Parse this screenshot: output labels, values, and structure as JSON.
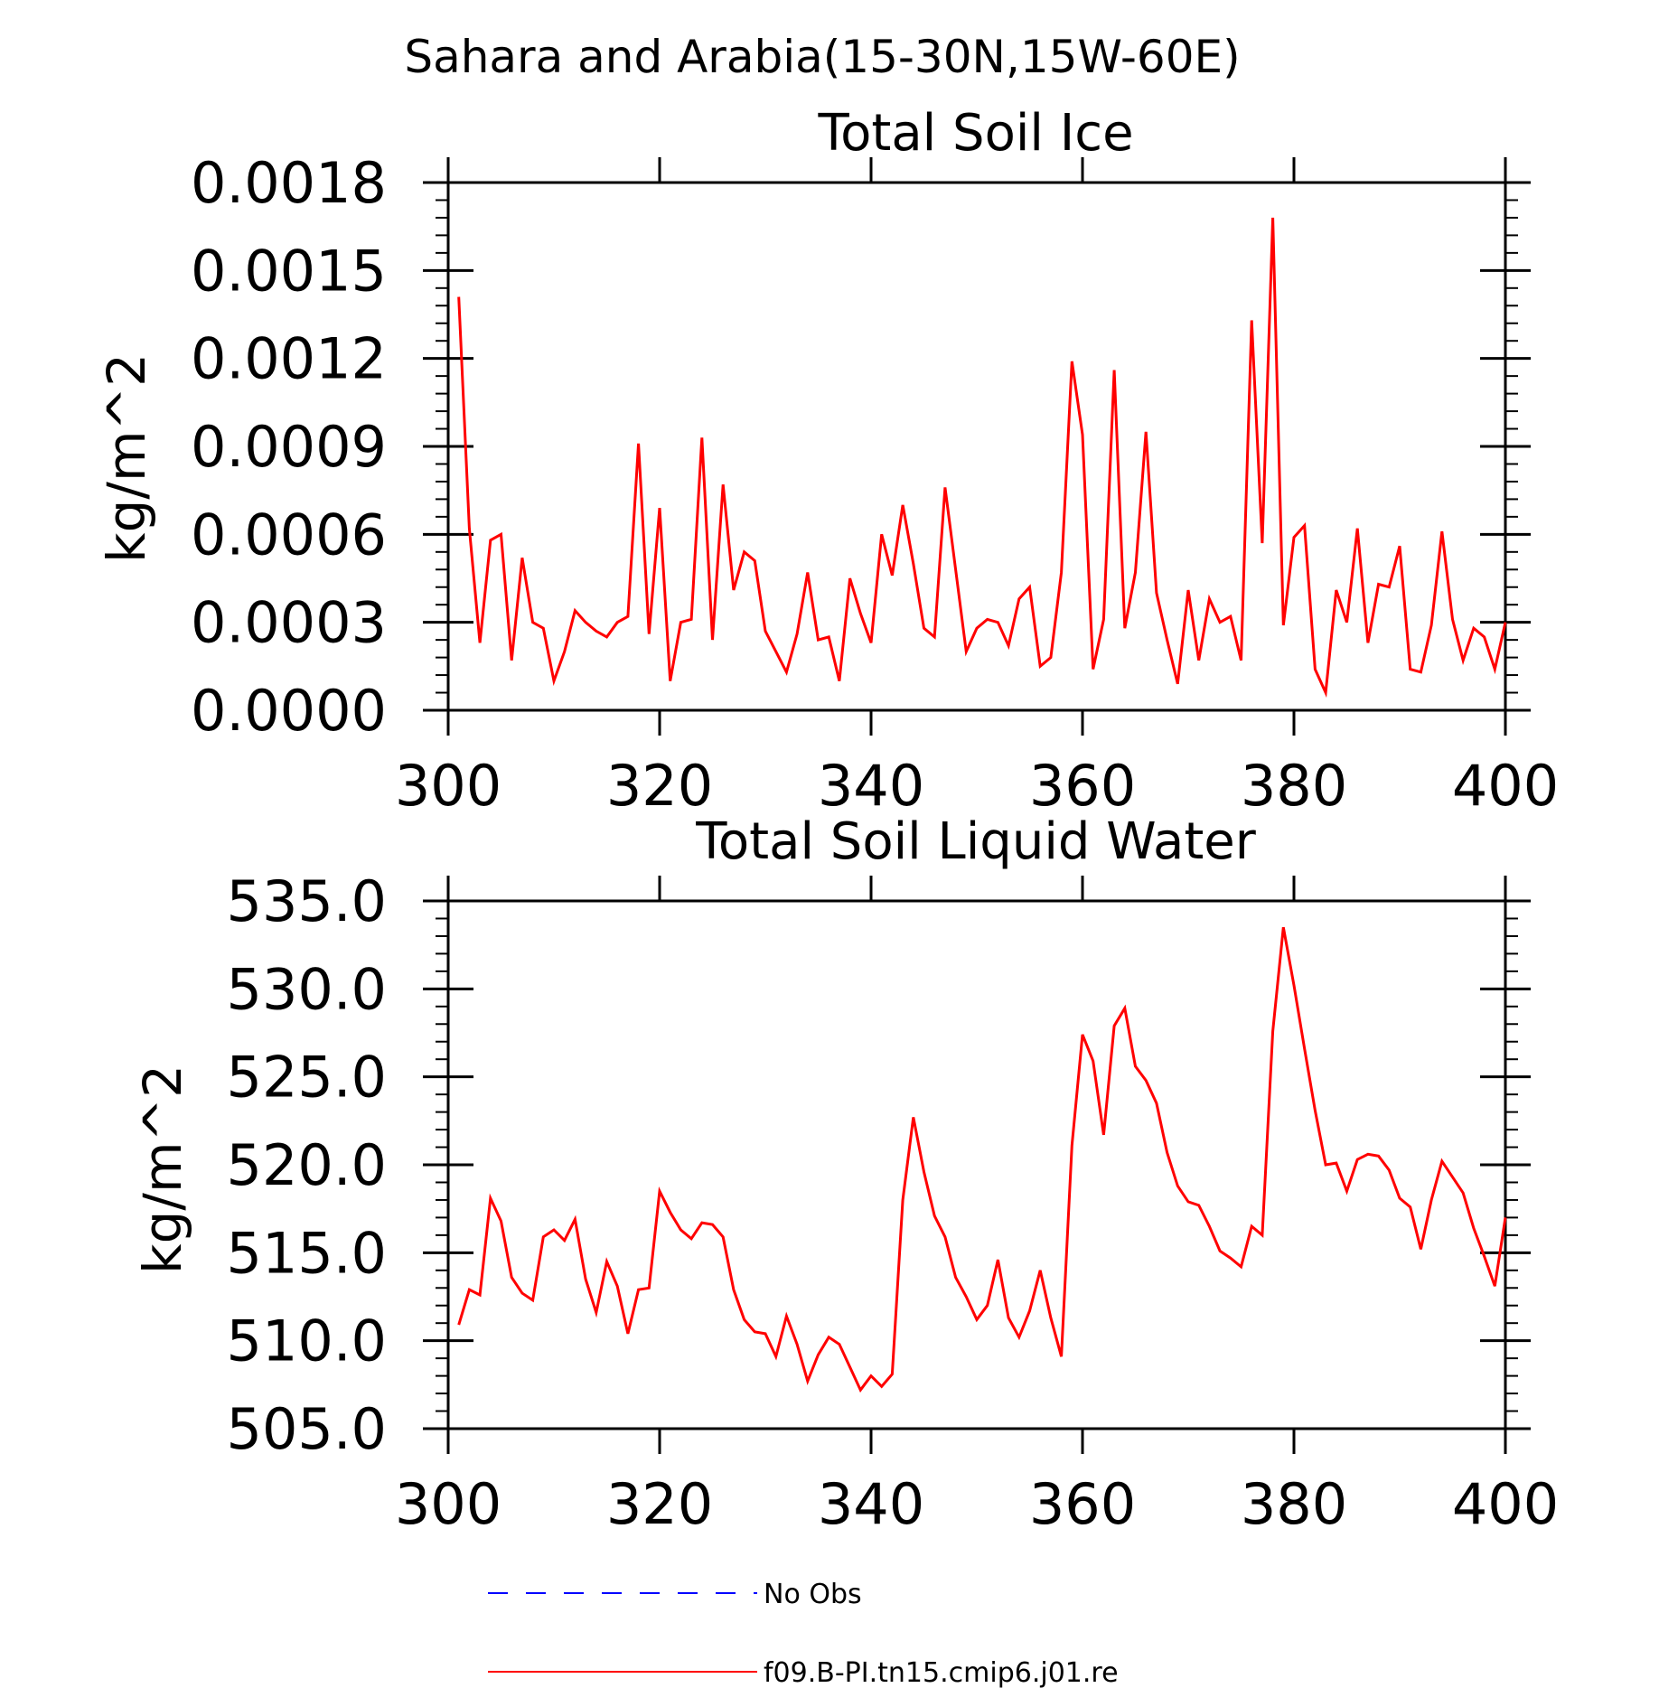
{
  "figure_title": "Sahara and Arabia(15-30N,15W-60E)",
  "colors": {
    "series": "#ff0000",
    "obs": "#0000ff",
    "axis": "#000000"
  },
  "legend": {
    "entries": [
      {
        "label": "No Obs",
        "color": "#0000ff",
        "style": "dashed"
      },
      {
        "label": "f09.B-PI.tn15.cmip6.j01.re",
        "color": "#ff0000",
        "style": "solid"
      }
    ]
  },
  "chart_data": [
    {
      "type": "line",
      "title": "Total Soil Ice",
      "ylabel": "kg/m^2",
      "xlim": [
        300,
        400
      ],
      "ylim": [
        0,
        0.0018
      ],
      "xticks": [
        300,
        320,
        340,
        360,
        380,
        400
      ],
      "xtick_labels": [
        "300",
        "320",
        "340",
        "360",
        "380",
        "400"
      ],
      "yticks": [
        0,
        0.0003,
        0.0006,
        0.0009,
        0.0012,
        0.0015,
        0.0018
      ],
      "ytick_labels": [
        "0.0000",
        "0.0003",
        "0.0006",
        "0.0009",
        "0.0012",
        "0.0015",
        "0.0018"
      ],
      "x_start": 301,
      "x_step": 1,
      "series": [
        {
          "name": "f09.B-PI.tn15.cmip6.j01.re",
          "color": "#ff0000",
          "values": [
            0.00141,
            0.00062,
            0.00023,
            0.00058,
            0.0006,
            0.00017,
            0.00052,
            0.0003,
            0.00028,
            0.0001,
            0.0002,
            0.00034,
            0.0003,
            0.00027,
            0.00025,
            0.0003,
            0.00032,
            0.00091,
            0.00026,
            0.00069,
            0.0001,
            0.0003,
            0.00031,
            0.00093,
            0.00024,
            0.00077,
            0.00041,
            0.00054,
            0.00051,
            0.00027,
            0.0002,
            0.00013,
            0.00026,
            0.00047,
            0.00024,
            0.00025,
            0.0001,
            0.00045,
            0.00033,
            0.00023,
            0.0006,
            0.00046,
            0.0007,
            0.0005,
            0.00028,
            0.00025,
            0.00076,
            0.00048,
            0.0002,
            0.00028,
            0.00031,
            0.0003,
            0.00022,
            0.00038,
            0.00042,
            0.00015,
            0.00018,
            0.00047,
            0.00119,
            0.00094,
            0.00014,
            0.00031,
            0.00116,
            0.00028,
            0.00047,
            0.00095,
            0.0004,
            0.00024,
            9e-05,
            0.00041,
            0.00017,
            0.00038,
            0.0003,
            0.00032,
            0.00017,
            0.00133,
            0.00057,
            0.00168,
            0.00029,
            0.00059,
            0.00063,
            0.00014,
            6e-05,
            0.00041,
            0.0003,
            0.00062,
            0.00023,
            0.00043,
            0.00042,
            0.00056,
            0.00014,
            0.00013,
            0.00029,
            0.00061,
            0.00031,
            0.00017,
            0.00028,
            0.00025,
            0.00014,
            0.0003
          ]
        }
      ]
    },
    {
      "type": "line",
      "title": "Total Soil Liquid Water",
      "ylabel": "kg/m^2",
      "xlim": [
        300,
        400
      ],
      "ylim": [
        505,
        535
      ],
      "xticks": [
        300,
        320,
        340,
        360,
        380,
        400
      ],
      "xtick_labels": [
        "300",
        "320",
        "340",
        "360",
        "380",
        "400"
      ],
      "yticks": [
        505,
        510,
        515,
        520,
        525,
        530,
        535
      ],
      "ytick_labels": [
        "505.0",
        "510.0",
        "515.0",
        "520.0",
        "525.0",
        "530.0",
        "535.0"
      ],
      "x_start": 301,
      "x_step": 1,
      "series": [
        {
          "name": "f09.B-PI.tn15.cmip6.j01.re",
          "color": "#ff0000",
          "values": [
            510.9,
            512.9,
            512.6,
            518.1,
            516.8,
            513.6,
            512.7,
            512.3,
            515.9,
            516.3,
            515.7,
            516.9,
            513.5,
            511.6,
            514.5,
            513.1,
            510.4,
            512.9,
            513.0,
            518.5,
            517.3,
            516.3,
            515.8,
            516.7,
            516.6,
            515.9,
            512.9,
            511.2,
            510.5,
            510.4,
            509.1,
            511.4,
            509.8,
            507.7,
            509.2,
            510.2,
            509.8,
            508.5,
            507.2,
            508.0,
            507.4,
            508.1,
            518.0,
            522.7,
            519.6,
            517.1,
            515.9,
            513.6,
            512.5,
            511.2,
            512.0,
            514.6,
            511.3,
            510.2,
            511.7,
            514.0,
            511.3,
            509.1,
            521.1,
            527.4,
            525.9,
            521.7,
            527.9,
            528.9,
            525.6,
            524.8,
            523.5,
            520.7,
            518.8,
            517.9,
            517.7,
            516.5,
            515.1,
            514.7,
            514.2,
            516.5,
            516.0,
            527.6,
            533.5,
            530.2,
            526.6,
            523.1,
            520.0,
            520.1,
            518.5,
            520.3,
            520.6,
            520.5,
            519.7,
            518.1,
            517.6,
            515.2,
            518.0,
            520.2,
            519.3,
            518.4,
            516.4,
            514.8,
            513.1,
            517.0
          ]
        }
      ]
    }
  ]
}
